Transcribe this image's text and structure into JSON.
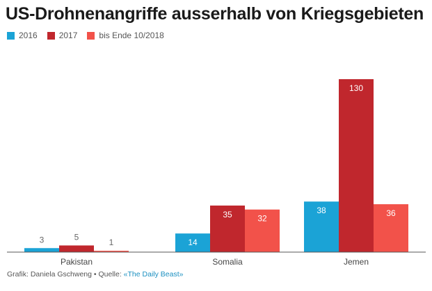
{
  "chart_data": {
    "type": "bar",
    "title": "US-Drohnenangriffe ausserhalb von Kriegsgebieten",
    "categories": [
      "Pakistan",
      "Somalia",
      "Jemen"
    ],
    "series": [
      {
        "name": "2016",
        "color": "#1ba3d6",
        "values": [
          3,
          14,
          38
        ]
      },
      {
        "name": "2017",
        "color": "#c0272d",
        "values": [
          5,
          35,
          130
        ]
      },
      {
        "name": "bis Ende 10/2018",
        "color": "#f2524a",
        "values": [
          1,
          32,
          36
        ]
      }
    ],
    "ylim": [
      0,
      135
    ],
    "grid": false,
    "legend": "top-left",
    "xlabel": "",
    "ylabel": ""
  },
  "footer": {
    "credit": "Grafik: Daniela Gschweng • Quelle: ",
    "source": "«The Daily Beast»"
  }
}
